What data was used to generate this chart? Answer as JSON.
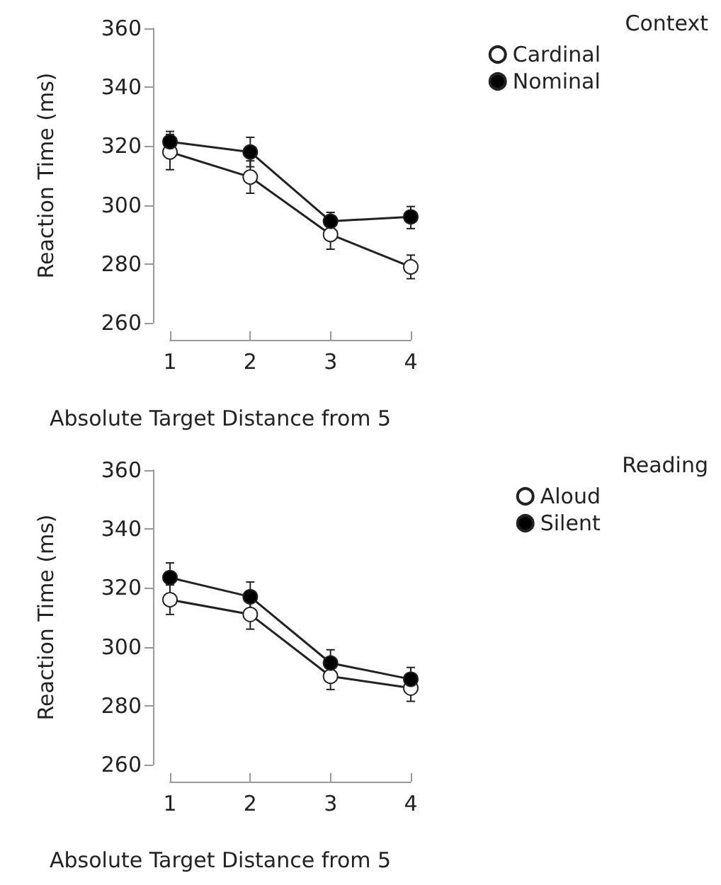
{
  "chart_data": [
    {
      "type": "line",
      "categories": [
        "1",
        "2",
        "3",
        "4"
      ],
      "xlabel": "Absolute Target Distance from 5",
      "ylabel": "Reaction Time (ms)",
      "legend_title": "Context",
      "ylim": [
        260,
        360
      ],
      "yticks": [
        260,
        280,
        300,
        320,
        340,
        360
      ],
      "grid": false,
      "legend": "top right",
      "marker": "circle",
      "line_style": "solid",
      "series": [
        {
          "name": "Cardinal",
          "color": "#ffffff",
          "values": [
            318,
            309.5,
            290,
            279
          ],
          "errors": [
            [
              312,
              324
            ],
            [
              304,
              315
            ],
            [
              285,
              295
            ],
            [
              275,
              283
            ]
          ]
        },
        {
          "name": "Nominal",
          "color": "#000000",
          "values": [
            321.5,
            318,
            294.5,
            296
          ],
          "errors": [
            [
              318,
              325
            ],
            [
              313,
              323
            ],
            [
              291,
              297.5
            ],
            [
              292,
              299.5
            ]
          ]
        }
      ]
    },
    {
      "type": "line",
      "categories": [
        "1",
        "2",
        "3",
        "4"
      ],
      "xlabel": "Absolute Target Distance from 5",
      "ylabel": "Reaction Time (ms)",
      "legend_title": "Reading",
      "ylim": [
        260,
        360
      ],
      "yticks": [
        260,
        280,
        300,
        320,
        340,
        360
      ],
      "grid": false,
      "legend": "top right",
      "marker": "circle",
      "line_style": "solid",
      "series": [
        {
          "name": "Aloud",
          "color": "#ffffff",
          "values": [
            316,
            311,
            290,
            286
          ],
          "errors": [
            [
              311,
              321
            ],
            [
              306,
              316
            ],
            [
              285.5,
              294
            ],
            [
              281.5,
              290
            ]
          ]
        },
        {
          "name": "Silent",
          "color": "#000000",
          "values": [
            323.5,
            317,
            294.5,
            289
          ],
          "errors": [
            [
              318,
              328.5
            ],
            [
              311.5,
              322
            ],
            [
              294.5,
              299
            ],
            [
              285,
              293
            ]
          ]
        }
      ]
    }
  ]
}
